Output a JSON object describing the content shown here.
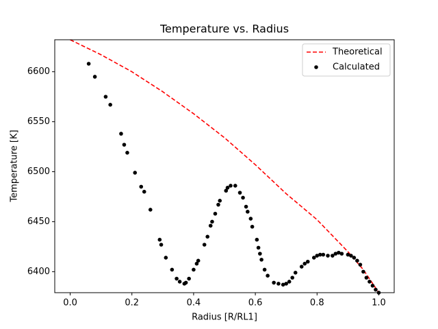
{
  "chart_data": {
    "type": "line-scatter",
    "title": "Temperature vs. Radius",
    "x_label": "Radius [R/RL1]",
    "y_label": "Temperature [K]",
    "xlim": [
      -0.05,
      1.05
    ],
    "ylim": [
      6379,
      6632
    ],
    "xticks": [
      {
        "value": 0,
        "label": "0.0"
      },
      0.2,
      0.4,
      0.6,
      0.8,
      {
        "value": 1,
        "label": "1.0"
      }
    ],
    "yticks": [
      6400,
      6450,
      6500,
      6550,
      6600
    ],
    "legend": "upper right",
    "grid": false,
    "series": [
      {
        "name": "Theoretical",
        "mode": "dashed-line",
        "color": "#ff0000",
        "x": [
          0,
          0.1,
          0.2,
          0.3,
          0.4,
          0.5,
          0.6,
          0.7,
          0.8,
          0.85,
          0.9,
          0.95,
          1.0
        ],
        "values": [
          6632,
          6617,
          6600,
          6580,
          6558,
          6534,
          6507,
          6478,
          6452,
          6436,
          6420,
          6402,
          6379
        ]
      },
      {
        "name": "Calculated",
        "mode": "dots",
        "color": "#000000",
        "x": [
          0.06,
          0.08,
          0.115,
          0.13,
          0.165,
          0.175,
          0.185,
          0.21,
          0.23,
          0.24,
          0.26,
          0.29,
          0.295,
          0.31,
          0.33,
          0.345,
          0.355,
          0.37,
          0.375,
          0.385,
          0.4,
          0.41,
          0.415,
          0.435,
          0.445,
          0.455,
          0.46,
          0.47,
          0.48,
          0.485,
          0.505,
          0.51,
          0.52,
          0.535,
          0.55,
          0.56,
          0.57,
          0.575,
          0.585,
          0.59,
          0.605,
          0.61,
          0.615,
          0.62,
          0.63,
          0.64,
          0.66,
          0.675,
          0.69,
          0.7,
          0.71,
          0.72,
          0.73,
          0.75,
          0.76,
          0.77,
          0.79,
          0.8,
          0.81,
          0.82,
          0.835,
          0.85,
          0.86,
          0.87,
          0.88,
          0.9,
          0.91,
          0.92,
          0.93,
          0.94,
          0.95,
          0.96,
          0.97,
          0.98,
          0.99,
          1.0
        ],
        "values": [
          6608,
          6595,
          6575,
          6567,
          6538,
          6527,
          6519,
          6499,
          6485,
          6480,
          6462,
          6432,
          6427,
          6414,
          6402,
          6393,
          6390,
          6388,
          6389,
          6393,
          6402,
          6408,
          6411,
          6427,
          6435,
          6446,
          6450,
          6458,
          6467,
          6471,
          6481,
          6484,
          6486,
          6486,
          6479,
          6474,
          6465,
          6460,
          6453,
          6445,
          6432,
          6424,
          6418,
          6412,
          6402,
          6396,
          6389,
          6388,
          6387,
          6388,
          6390,
          6394,
          6399,
          6405,
          6408,
          6410,
          6414,
          6416,
          6417,
          6417,
          6416,
          6416,
          6418,
          6419,
          6418,
          6417,
          6416,
          6414,
          6411,
          6407,
          6400,
          6394,
          6390,
          6386,
          6382,
          6379
        ]
      }
    ]
  }
}
